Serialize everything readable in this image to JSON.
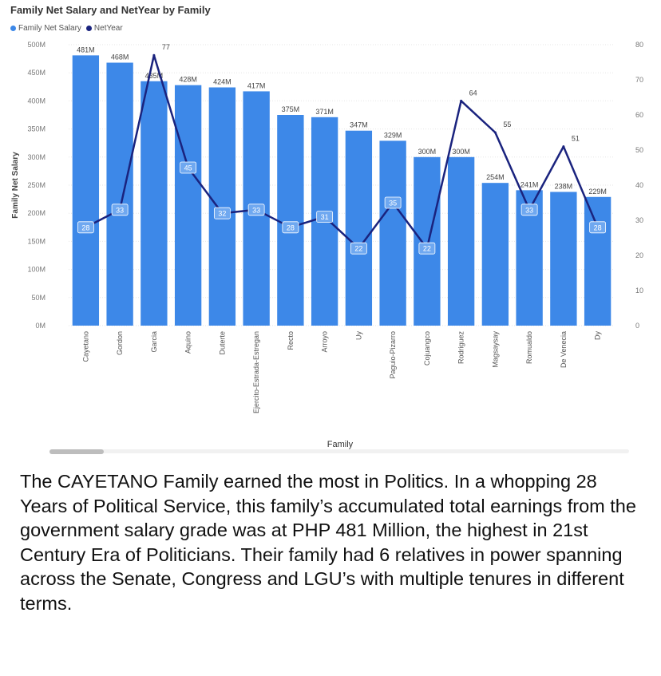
{
  "title": "Family Net Salary and NetYear by Family",
  "legend": [
    {
      "label": "Family Net Salary",
      "color": "#3d88e8"
    },
    {
      "label": "NetYear",
      "color": "#1a237e"
    }
  ],
  "chart_data": {
    "type": "bar",
    "title": "Family Net Salary and NetYear by Family",
    "xlabel": "Family",
    "ylabel": "Family Net Salary",
    "categories": [
      "Cayetano",
      "Gordon",
      "Garcia",
      "Aquino",
      "Duterte",
      "Ejercito-Estrada-Estregan",
      "Recto",
      "Arroyo",
      "Uy",
      "Paguio-Pizarro",
      "Cojuangco",
      "Rodriguez",
      "Magsaysay",
      "Romualdo",
      "De Venecia",
      "Dy"
    ],
    "series": [
      {
        "name": "Family Net Salary",
        "type": "bar",
        "axis": "left",
        "color": "#3d88e8",
        "values": [
          481,
          468,
          435,
          428,
          424,
          417,
          375,
          371,
          347,
          329,
          300,
          300,
          254,
          241,
          238,
          229
        ],
        "labels": [
          "481M",
          "468M",
          "435M",
          "428M",
          "424M",
          "417M",
          "375M",
          "371M",
          "347M",
          "329M",
          "300M",
          "300M",
          "254M",
          "241M",
          "238M",
          "229M"
        ]
      },
      {
        "name": "NetYear",
        "type": "line",
        "axis": "right",
        "color": "#1a237e",
        "values": [
          28,
          33,
          77,
          45,
          32,
          33,
          28,
          31,
          22,
          35,
          22,
          64,
          55,
          33,
          51,
          28
        ]
      }
    ],
    "ylim": [
      0,
      500
    ],
    "y_ticks": [
      "0M",
      "50M",
      "100M",
      "150M",
      "200M",
      "250M",
      "300M",
      "350M",
      "400M",
      "450M",
      "500M"
    ],
    "y2lim": [
      0,
      80
    ],
    "y2_ticks": [
      "0",
      "10",
      "20",
      "30",
      "40",
      "50",
      "60",
      "70",
      "80"
    ],
    "grid": true,
    "legend_position": "top-left"
  },
  "caption": "The CAYETANO Family earned the most in Politics. In a whopping 28 Years of Political Service, this family’s accumulated total earnings from the government salary grade was at PHP 481 Million, the highest in 21st Century Era of Politicians. Their family had 6 relatives in power spanning across the Senate, Congress and LGU’s with multiple tenures in different terms."
}
